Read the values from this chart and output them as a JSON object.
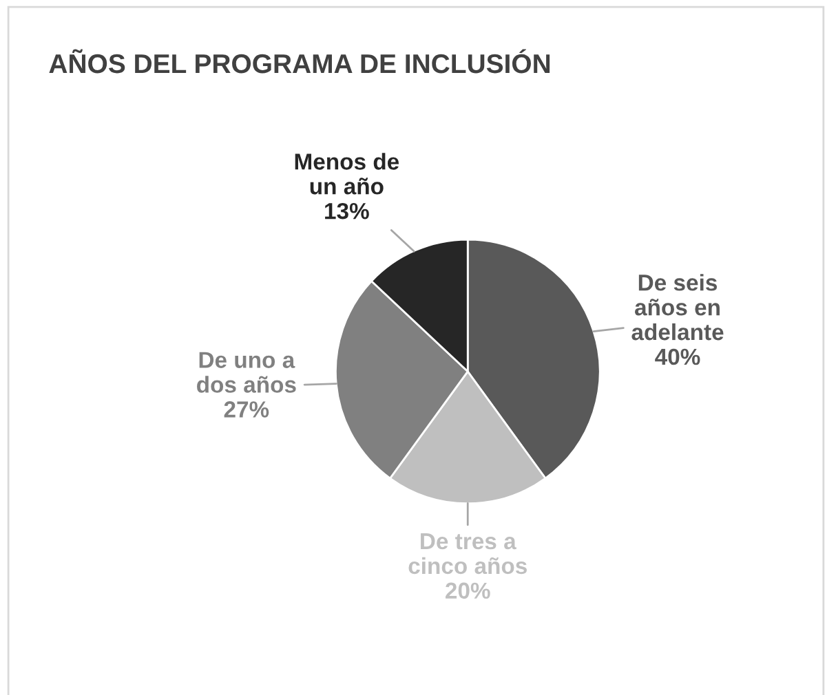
{
  "chart_data": {
    "type": "pie",
    "title": "AÑOS DEL PROGRAMA DE INCLUSIÓN",
    "categories": [
      "De seis\naños en\nadelante",
      "De tres a\ncinco años",
      "De uno a\ndos años",
      "Menos de\nun año"
    ],
    "values": [
      40,
      20,
      27,
      13
    ],
    "colors": [
      "#595959",
      "#bfbfbf",
      "#808080",
      "#262626"
    ],
    "value_labels": [
      "40%",
      "20%",
      "27%",
      "13%"
    ]
  }
}
